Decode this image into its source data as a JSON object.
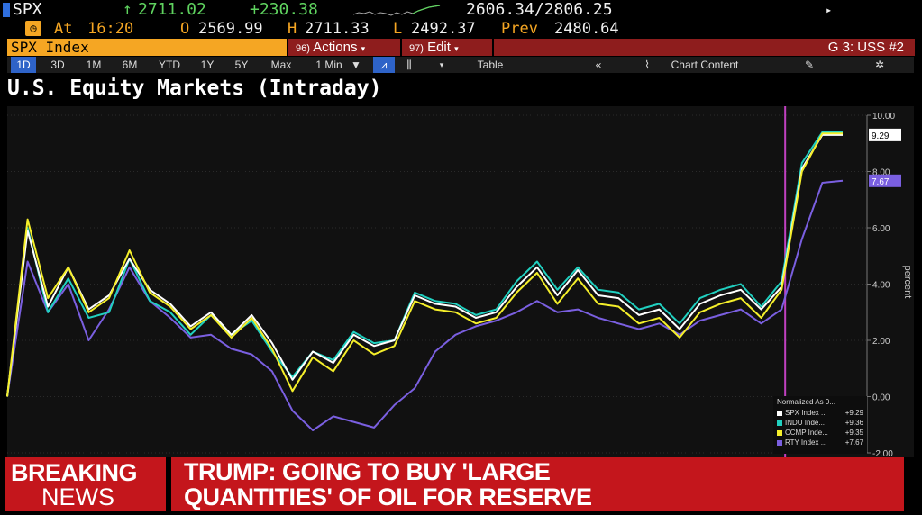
{
  "quote": {
    "ticker": "SPX",
    "last": "2711.02",
    "change": "+230.38",
    "range": "2606.34/2806.25",
    "at_label": "At",
    "time": "16:20",
    "open_label": "O",
    "open": "2569.99",
    "high_label": "H",
    "high": "2711.33",
    "low_label": "L",
    "low": "2492.37",
    "prev_label": "Prev",
    "prev": "2480.64"
  },
  "command_bar": {
    "security": "SPX Index",
    "actions_num": "96)",
    "actions_label": "Actions",
    "edit_num": "97)",
    "edit_label": "Edit",
    "launchpad": "G 3: USS #2"
  },
  "toolbar": {
    "periods": [
      "1D",
      "3D",
      "1M",
      "6M",
      "YTD",
      "1Y",
      "5Y",
      "Max"
    ],
    "selected_period": "1D",
    "interval": "1 Min",
    "table_label": "Table",
    "chart_content_label": "Chart Content"
  },
  "title": "U.S. Equity Markets (Intraday)",
  "colors": {
    "spx": "#ffffff",
    "indu": "#20d0c0",
    "ccmp": "#f5ef2a",
    "rty": "#7a5fe0",
    "event_line": "#c040c0",
    "breaking_red": "#c4161c"
  },
  "chart_data": {
    "type": "line",
    "ylabel": "percent",
    "ylim": [
      -2,
      10
    ],
    "yticks": [
      "10.00",
      "8.00",
      "6.00",
      "4.00",
      "2.00",
      "0.00",
      "-2.00"
    ],
    "grid": true,
    "legend_title": "Normalized As 0...",
    "legend_placement": "bottom-right",
    "series": [
      {
        "name": "SPX Index ...",
        "key": "spx",
        "last_label": "+9.29",
        "axis_tag": "9.29",
        "values": [
          0.0,
          5.9,
          3.2,
          4.6,
          3.1,
          3.6,
          4.9,
          3.8,
          3.3,
          2.5,
          3.0,
          2.2,
          2.9,
          1.9,
          0.6,
          1.6,
          1.2,
          2.2,
          1.8,
          2.0,
          3.6,
          3.3,
          3.2,
          2.8,
          3.0,
          3.9,
          4.6,
          3.6,
          4.5,
          3.6,
          3.5,
          2.9,
          3.1,
          2.4,
          3.3,
          3.6,
          3.8,
          3.1,
          3.9,
          8.1,
          9.3,
          9.3
        ]
      },
      {
        "name": "INDU Inde...",
        "key": "indu",
        "last_label": "+9.36",
        "axis_tag": "",
        "values": [
          0.0,
          6.0,
          3.0,
          4.2,
          2.8,
          3.0,
          4.9,
          3.4,
          3.0,
          2.2,
          2.9,
          2.2,
          2.7,
          1.6,
          0.7,
          1.6,
          1.3,
          2.3,
          1.9,
          2.0,
          3.7,
          3.4,
          3.3,
          2.9,
          3.1,
          4.1,
          4.8,
          3.8,
          4.6,
          3.8,
          3.7,
          3.1,
          3.3,
          2.6,
          3.5,
          3.8,
          4.0,
          3.2,
          4.1,
          8.3,
          9.4,
          9.4
        ]
      },
      {
        "name": "CCMP Inde...",
        "key": "ccmp",
        "last_label": "+9.35",
        "axis_tag": "",
        "values": [
          0.0,
          6.3,
          3.5,
          4.6,
          3.0,
          3.5,
          5.2,
          3.7,
          3.2,
          2.4,
          2.9,
          2.1,
          2.8,
          1.7,
          0.2,
          1.4,
          0.9,
          2.0,
          1.5,
          1.8,
          3.4,
          3.1,
          3.0,
          2.6,
          2.8,
          3.7,
          4.4,
          3.3,
          4.2,
          3.3,
          3.2,
          2.6,
          2.8,
          2.1,
          3.0,
          3.3,
          3.5,
          2.8,
          3.8,
          8.0,
          9.35,
          9.35
        ]
      },
      {
        "name": "RTY Index ...",
        "key": "rty",
        "last_label": "+7.67",
        "axis_tag": "7.67",
        "values": [
          0.0,
          4.8,
          3.0,
          4.0,
          2.0,
          3.1,
          4.6,
          3.4,
          2.8,
          2.1,
          2.2,
          1.7,
          1.5,
          0.9,
          -0.5,
          -1.2,
          -0.7,
          -0.9,
          -1.1,
          -0.3,
          0.3,
          1.6,
          2.2,
          2.5,
          2.7,
          3.0,
          3.4,
          3.0,
          3.1,
          2.8,
          2.6,
          2.4,
          2.6,
          2.2,
          2.7,
          2.9,
          3.1,
          2.6,
          3.1,
          5.6,
          7.6,
          7.67
        ]
      }
    ],
    "event_line_index": 38
  },
  "breaking": {
    "label_line1": "BREAKING",
    "label_line2": "NEWS",
    "headline_line1": "TRUMP: GOING TO BUY 'LARGE",
    "headline_line2": "QUANTITIES' OF OIL FOR RESERVE"
  }
}
